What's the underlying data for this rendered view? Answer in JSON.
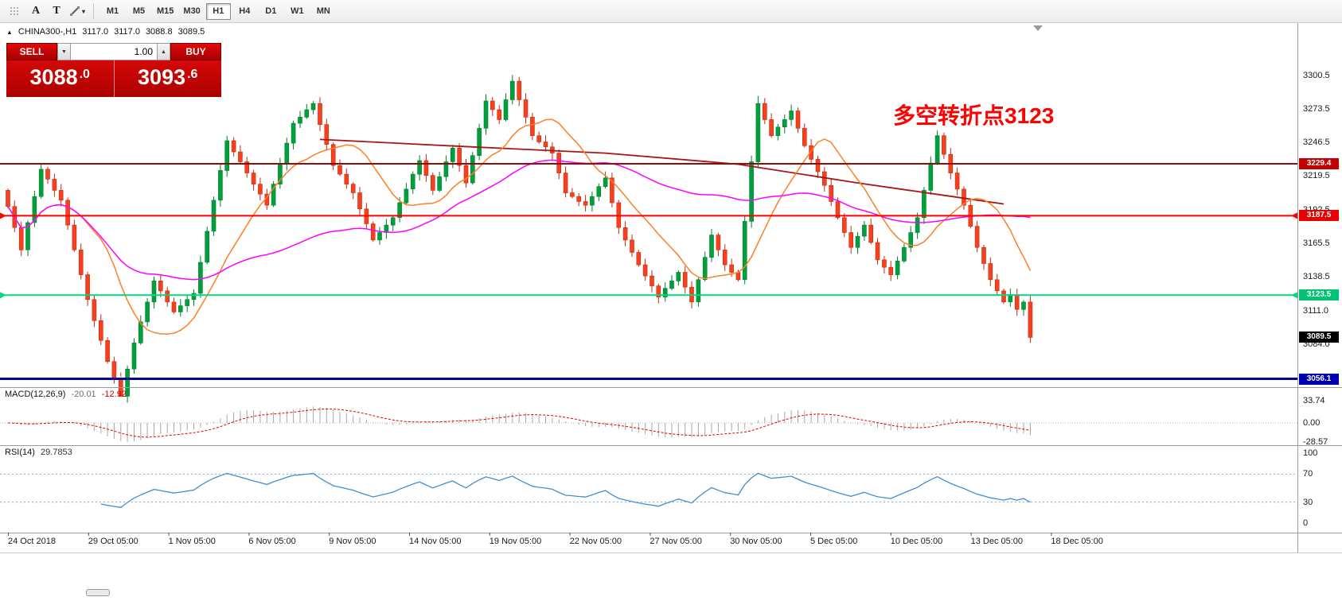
{
  "toolbar": {
    "tools": [
      {
        "name": "grip"
      },
      {
        "name": "text-annotation",
        "glyph": "A"
      },
      {
        "name": "text-label",
        "glyph": "T"
      },
      {
        "name": "shapes",
        "caret": "▾"
      }
    ],
    "timeframes": [
      "M1",
      "M5",
      "M15",
      "M30",
      "H1",
      "H4",
      "D1",
      "W1",
      "MN"
    ],
    "active_timeframe": "H1"
  },
  "header": {
    "collapse_icon": "▲",
    "symbol": "CHINA300-,H1",
    "open": "3117.0",
    "high": "3117.0",
    "low": "3088.8",
    "close": "3089.5"
  },
  "trade_panel": {
    "sell_label": "SELL",
    "buy_label": "BUY",
    "volume": "1.00",
    "down_arrow": "▼",
    "up_arrow": "▲",
    "sell_price": "3088.0",
    "buy_price": "3093.6"
  },
  "annotation": {
    "text": "多空转折点3123",
    "color": "#ff0000"
  },
  "price_axis": {
    "grid_labels": [
      "3300.5",
      "3273.5",
      "3246.5",
      "3219.5",
      "3192.5",
      "3165.5",
      "3138.5",
      "3111.0",
      "3084.0"
    ]
  },
  "hlines": [
    {
      "price": 3229.4,
      "label": "3229.4",
      "color": "#8f0d0d",
      "tag_bg": "#c40000",
      "width": 2,
      "arrows": false
    },
    {
      "price": 3187.5,
      "label": "3187.5",
      "color": "#ff0000",
      "tag_bg": "#e60000",
      "width": 2,
      "arrows": true
    },
    {
      "price": 3123.5,
      "label": "3123.5",
      "color": "#00d97e",
      "tag_bg": "#00c474",
      "width": 2,
      "arrows": true
    },
    {
      "price": 3056.1,
      "label": "3056.1",
      "color": "#000099",
      "tag_bg": "#0000b3",
      "width": 3,
      "arrows": false
    }
  ],
  "current_price_tag": {
    "label": "3089.5",
    "bg": "#000000"
  },
  "macd_panel": {
    "title": "MACD(12,26,9)",
    "values": [
      "-20.01",
      "-12.92"
    ],
    "axis_labels": [
      "33.74",
      "0.00",
      "-28.57"
    ]
  },
  "rsi_panel": {
    "title": "RSI(14)",
    "value": "29.7853",
    "axis_labels": [
      "100",
      "70",
      "30",
      "0"
    ],
    "levels": [
      70,
      30
    ]
  },
  "chart_data": {
    "type": "candlestick",
    "symbol": "CHINA300-",
    "timeframe": "H1",
    "ohlc_current": {
      "open": 3117.0,
      "high": 3117.0,
      "low": 3088.8,
      "close": 3089.5
    },
    "price_axis_range": {
      "top": 3342.8,
      "bottom": 3049.4
    },
    "first_open": 3208,
    "closes": [
      3195,
      3178,
      3160,
      3182,
      3203,
      3225,
      3217,
      3208,
      3200,
      3180,
      3160,
      3140,
      3120,
      3103,
      3087,
      3070,
      3056,
      3042,
      3064,
      3085,
      3102,
      3118,
      3135,
      3127,
      3118,
      3110,
      3115,
      3120,
      3125,
      3150,
      3175,
      3200,
      3224,
      3248,
      3239,
      3231,
      3222,
      3213,
      3205,
      3196,
      3213,
      3229,
      3246,
      3262,
      3267,
      3273,
      3278,
      3261,
      3245,
      3228,
      3221,
      3213,
      3206,
      3193,
      3181,
      3168,
      3174,
      3180,
      3186,
      3198,
      3209,
      3221,
      3232,
      3220,
      3208,
      3219,
      3231,
      3242,
      3228,
      3214,
      3236,
      3258,
      3280,
      3273,
      3265,
      3281,
      3296,
      3281,
      3267,
      3252,
      3247,
      3243,
      3238,
      3222,
      3206,
      3203,
      3199,
      3196,
      3203,
      3211,
      3218,
      3198,
      3178,
      3168,
      3158,
      3148,
      3139,
      3131,
      3122,
      3129,
      3135,
      3142,
      3130,
      3118,
      3136,
      3154,
      3172,
      3160,
      3148,
      3142,
      3136,
      3183,
      3231,
      3278,
      3265,
      3252,
      3259,
      3265,
      3272,
      3258,
      3244,
      3233,
      3223,
      3212,
      3199,
      3186,
      3174,
      3162,
      3171,
      3180,
      3166,
      3152,
      3146,
      3140,
      3151,
      3162,
      3174,
      3186,
      3208,
      3230,
      3252,
      3237,
      3222,
      3209,
      3196,
      3179,
      3162,
      3149,
      3136,
      3127,
      3118,
      3124,
      3112,
      3118,
      3089.5
    ],
    "wick_overrides": {
      "17": {
        "low": 3058
      },
      "76": {
        "high": 3301
      },
      "113": {
        "high": 3284
      },
      "154": {
        "low": 3085
      }
    },
    "moving_averages": [
      {
        "name": "fast-ma",
        "period": 12,
        "color": "#ff7f24"
      },
      {
        "name": "slow-ma",
        "period": 50,
        "color": "#ff00ff"
      }
    ],
    "trend_ma_anchors": [
      {
        "i": 47,
        "p": 3249
      },
      {
        "i": 70,
        "p": 3243
      },
      {
        "i": 90,
        "p": 3238
      },
      {
        "i": 110,
        "p": 3229
      },
      {
        "i": 128,
        "p": 3214
      },
      {
        "i": 141,
        "p": 3204
      },
      {
        "i": 150,
        "p": 3197
      }
    ],
    "macd": {
      "fast": 12,
      "slow": 26,
      "signal": 9,
      "current_main": -20.01,
      "current_signal": -12.92
    },
    "rsi": {
      "period": 14,
      "current": 29.7853
    },
    "time_labels": [
      "24 Oct 2018",
      "29 Oct 05:00",
      "1 Nov 05:00",
      "6 Nov 05:00",
      "9 Nov 05:00",
      "14 Nov 05:00",
      "19 Nov 05:00",
      "22 Nov 05:00",
      "27 Nov 05:00",
      "30 Nov 05:00",
      "5 Dec 05:00",
      "10 Dec 05:00",
      "13 Dec 05:00",
      "18 Dec 05:00"
    ]
  }
}
